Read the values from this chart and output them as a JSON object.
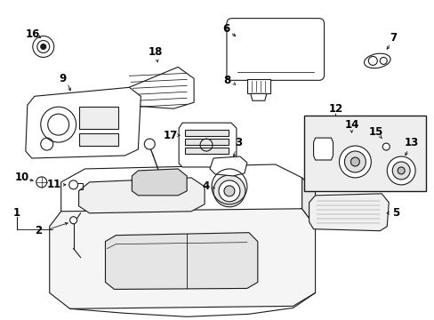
{
  "bg_color": "#ffffff",
  "line_color": "#1a1a1a",
  "fig_width": 4.89,
  "fig_height": 3.6,
  "dpi": 100,
  "label_fontsize": 8.5,
  "label_bold": true
}
